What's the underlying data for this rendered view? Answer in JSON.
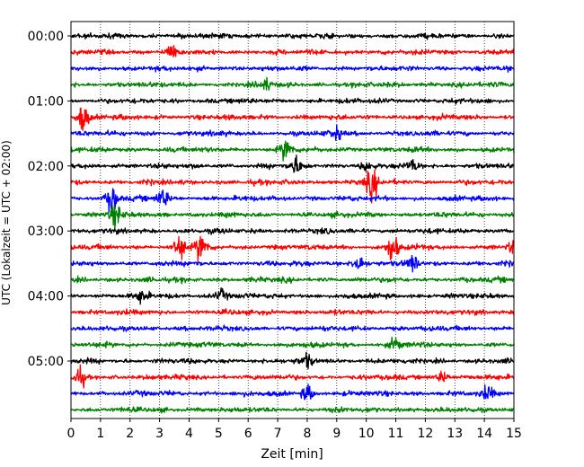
{
  "chart_data": {
    "type": "line",
    "title": "",
    "xlabel": "Zeit  [min]",
    "ylabel": "UTC (Lokalzeit = UTC + 02:00)",
    "xlim": [
      0,
      15
    ],
    "x_ticks": [
      0,
      1,
      2,
      3,
      4,
      5,
      6,
      7,
      8,
      9,
      10,
      11,
      12,
      13,
      14,
      15
    ],
    "y_tick_labels": [
      "00:00",
      "01:00",
      "02:00",
      "03:00",
      "04:00",
      "05:00"
    ],
    "y_tick_rows": [
      0,
      4,
      8,
      12,
      16,
      20
    ],
    "trace_interval_min": 15,
    "trace_count": 24,
    "trace_colors": [
      "#000000",
      "#ff0000",
      "#0000ff",
      "#008000"
    ],
    "grid": {
      "x": "dotted",
      "y": "none"
    },
    "events": [
      {
        "row": 1,
        "t": 3.4,
        "amp": 1.6
      },
      {
        "row": 3,
        "t": 6.6,
        "amp": 1.3
      },
      {
        "row": 5,
        "t": 0.4,
        "amp": 3.4
      },
      {
        "row": 6,
        "t": 9.0,
        "amp": 1.4
      },
      {
        "row": 7,
        "t": 7.3,
        "amp": 2.6
      },
      {
        "row": 8,
        "t": 7.6,
        "amp": 2.0
      },
      {
        "row": 8,
        "t": 10.0,
        "amp": 1.2
      },
      {
        "row": 8,
        "t": 11.6,
        "amp": 1.2
      },
      {
        "row": 9,
        "t": 10.2,
        "amp": 3.6
      },
      {
        "row": 10,
        "t": 1.4,
        "amp": 3.4
      },
      {
        "row": 10,
        "t": 3.1,
        "amp": 2.3
      },
      {
        "row": 11,
        "t": 1.5,
        "amp": 2.5
      },
      {
        "row": 13,
        "t": 3.7,
        "amp": 3.0
      },
      {
        "row": 13,
        "t": 4.4,
        "amp": 3.2
      },
      {
        "row": 13,
        "t": 10.9,
        "amp": 3.4
      },
      {
        "row": 13,
        "t": 15.0,
        "amp": 1.6
      },
      {
        "row": 14,
        "t": 9.7,
        "amp": 2.4
      },
      {
        "row": 14,
        "t": 11.6,
        "amp": 1.8
      },
      {
        "row": 16,
        "t": 2.4,
        "amp": 1.6
      },
      {
        "row": 16,
        "t": 5.1,
        "amp": 1.4
      },
      {
        "row": 19,
        "t": 11.0,
        "amp": 1.6
      },
      {
        "row": 20,
        "t": 8.0,
        "amp": 1.4
      },
      {
        "row": 21,
        "t": 0.3,
        "amp": 2.2
      },
      {
        "row": 21,
        "t": 12.6,
        "amp": 1.5
      },
      {
        "row": 22,
        "t": 8.0,
        "amp": 1.8
      },
      {
        "row": 22,
        "t": 14.1,
        "amp": 1.5
      }
    ]
  }
}
